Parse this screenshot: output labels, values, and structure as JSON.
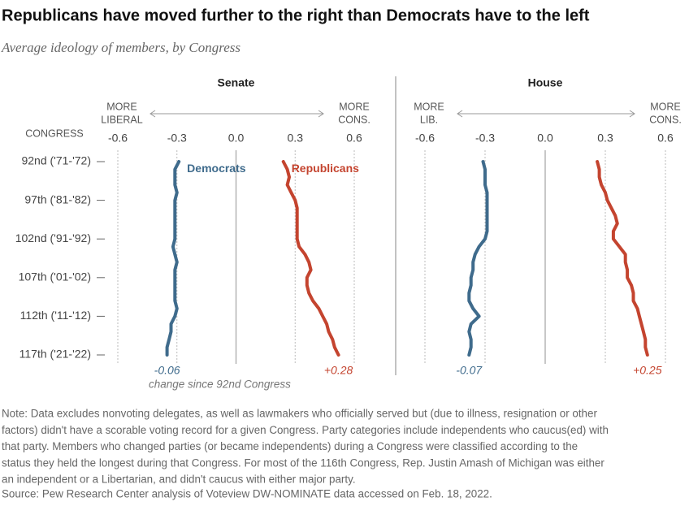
{
  "title": "Republicans have moved further to the right than Democrats have to the left",
  "subtitle": "Average ideology of members, by Congress",
  "note_lines": [
    "Note: Data excludes nonvoting delegates, as well as lawmakers who officially served but (due to illness, resignation or other",
    "factors) didn't have a scorable voting record for a given Congress. Party categories include independents who caucus(ed) with",
    "that party. Members who changed parties (or became independents) during a Congress were classified according to the",
    "status they held the longest during that Congress. For most of the 116th Congress, Rep. Justin Amash of Michigan was either",
    "an independent or a Libertarian, and didn't caucus with either major party."
  ],
  "source": "Source: Pew Research Center analysis of Voteview DW-NOMINATE data accessed on Feb. 18, 2022.",
  "chart_data": [
    {
      "type": "line",
      "title": "Senate",
      "y_axis_label": "CONGRESS",
      "left_label": [
        "MORE",
        "LIBERAL"
      ],
      "right_label": [
        "MORE",
        "CONS."
      ],
      "change_note": "change since 92nd Congress",
      "line_labels": true,
      "categories": [
        "92nd ('71-'72)",
        null,
        null,
        null,
        null,
        "97th ('81-'82)",
        null,
        null,
        null,
        null,
        "102nd ('91-'92)",
        null,
        null,
        null,
        null,
        "107th ('01-'02)",
        null,
        null,
        null,
        null,
        "112th ('11-'12)",
        null,
        null,
        null,
        null,
        "117th ('21-'22)"
      ],
      "xlim": [
        -0.6,
        0.6
      ],
      "xticks": [
        -0.6,
        -0.3,
        {
          "value": 0,
          "label": "0.0"
        },
        0.3,
        0.6
      ],
      "grid": true,
      "series": [
        {
          "name": "Democrats",
          "color": "#3f6b8c",
          "change_label": "-0.06",
          "values": [
            -0.29,
            -0.31,
            -0.31,
            -0.31,
            -0.3,
            -0.31,
            -0.31,
            -0.31,
            -0.31,
            -0.31,
            -0.31,
            -0.32,
            -0.31,
            -0.3,
            -0.31,
            -0.31,
            -0.31,
            -0.31,
            -0.31,
            -0.3,
            -0.31,
            -0.33,
            -0.33,
            -0.34,
            -0.35,
            -0.35
          ]
        },
        {
          "name": "Republicans",
          "color": "#c4442f",
          "change_label": "+0.28",
          "values": [
            0.24,
            0.26,
            0.27,
            0.26,
            0.28,
            0.3,
            0.31,
            0.31,
            0.31,
            0.31,
            0.31,
            0.32,
            0.35,
            0.37,
            0.38,
            0.36,
            0.36,
            0.37,
            0.39,
            0.42,
            0.44,
            0.46,
            0.47,
            0.49,
            0.5,
            0.52
          ]
        }
      ]
    },
    {
      "type": "line",
      "title": "House",
      "left_label": [
        "MORE",
        "LIB."
      ],
      "right_label": [
        "MORE",
        "CONS."
      ],
      "line_labels": false,
      "xlim": [
        -0.6,
        0.6
      ],
      "xticks": [
        -0.6,
        -0.3,
        {
          "value": 0,
          "label": "0.0"
        },
        0.3,
        0.6
      ],
      "grid": true,
      "series": [
        {
          "name": "Democrats",
          "color": "#3f6b8c",
          "change_label": "-0.07",
          "values": [
            -0.31,
            -0.3,
            -0.3,
            -0.3,
            -0.29,
            -0.29,
            -0.29,
            -0.29,
            -0.29,
            -0.29,
            -0.3,
            -0.33,
            -0.35,
            -0.36,
            -0.36,
            -0.37,
            -0.37,
            -0.38,
            -0.38,
            -0.36,
            -0.33,
            -0.37,
            -0.38,
            -0.37,
            -0.37,
            -0.38
          ]
        },
        {
          "name": "Republicans",
          "color": "#c4442f",
          "change_label": "+0.25",
          "values": [
            0.26,
            0.27,
            0.27,
            0.28,
            0.3,
            0.31,
            0.33,
            0.35,
            0.36,
            0.34,
            0.34,
            0.37,
            0.4,
            0.4,
            0.41,
            0.41,
            0.43,
            0.44,
            0.44,
            0.46,
            0.47,
            0.48,
            0.49,
            0.5,
            0.5,
            0.51
          ]
        }
      ]
    }
  ]
}
